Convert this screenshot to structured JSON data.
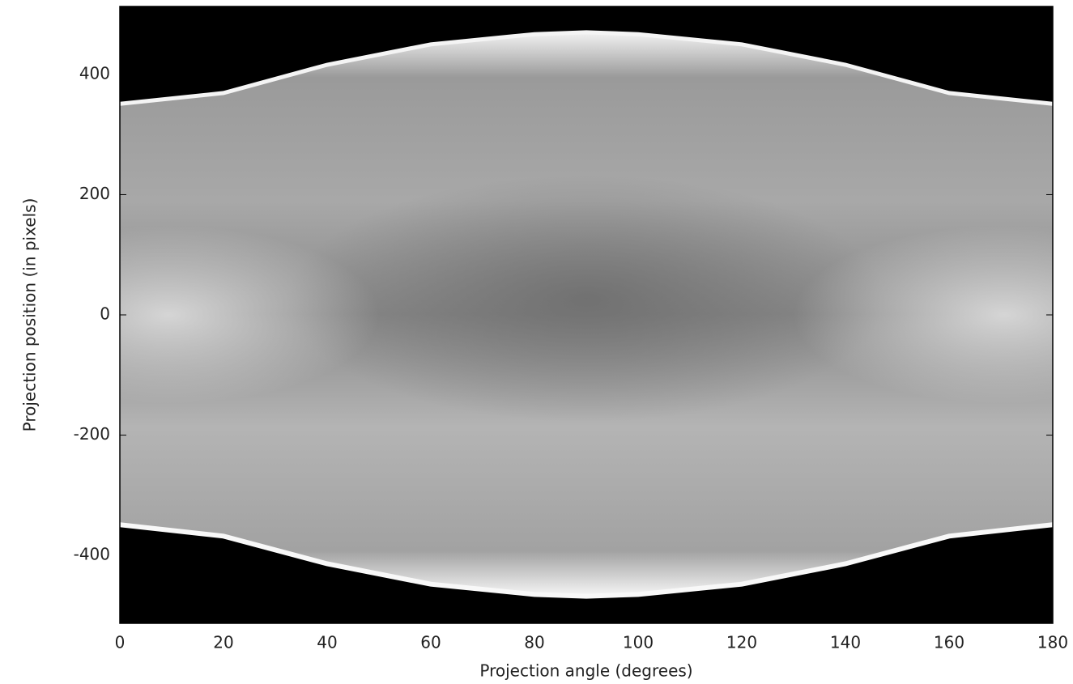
{
  "chart_data": {
    "type": "sinogram",
    "x_label": "Projection angle (degrees)",
    "y_label": "Projection position (in pixels)",
    "xlim": [
      0,
      180
    ],
    "xticks": [
      0,
      20,
      40,
      60,
      80,
      100,
      120,
      140,
      160,
      180
    ],
    "ylim": [
      -513,
      513
    ],
    "yticks": [
      -400,
      -200,
      0,
      200,
      400
    ],
    "x": [
      0,
      20,
      40,
      60,
      80,
      90,
      100,
      120,
      140,
      160,
      180
    ],
    "upper": [
      351,
      369,
      416,
      450,
      467,
      470,
      467,
      450,
      416,
      369,
      351
    ],
    "lower": [
      -349,
      -368,
      -414,
      -448,
      -465,
      -468,
      -465,
      -448,
      -414,
      -368,
      -349
    ]
  }
}
